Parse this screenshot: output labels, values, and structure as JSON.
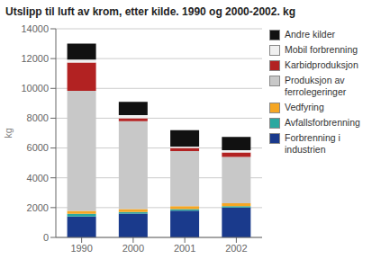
{
  "chart_data": {
    "type": "bar",
    "stacked": true,
    "title": "Utslipp til luft av krom, etter kilde. 1990 og 2000-2002. kg",
    "y_label": "kg",
    "categories": [
      "1990",
      "2000",
      "2001",
      "2002"
    ],
    "series": [
      {
        "name": "Forbrenning i\nindustrien",
        "color": "#1a3a8c",
        "values": [
          1400,
          1600,
          1800,
          2000
        ]
      },
      {
        "name": "Avfallsforbrenning",
        "color": "#2aa8a0",
        "values": [
          180,
          100,
          100,
          100
        ]
      },
      {
        "name": "Vedfyring",
        "color": "#f5a623",
        "values": [
          200,
          200,
          200,
          200
        ]
      },
      {
        "name": "Produksjon av\nferrolegeringer",
        "color": "#c8c8c8",
        "values": [
          8050,
          5900,
          3700,
          3100
        ]
      },
      {
        "name": "Karbidproduksjon",
        "color": "#b22222",
        "values": [
          1900,
          200,
          200,
          300
        ]
      },
      {
        "name": "Mobil forbrenning",
        "color": "#f0f0f0",
        "values": [
          200,
          200,
          100,
          150
        ]
      },
      {
        "name": "Andre kilder",
        "color": "#111111",
        "values": [
          1070,
          900,
          1100,
          900
        ]
      }
    ],
    "ylim": [
      0,
      14000
    ],
    "yticks": [
      0,
      2000,
      4000,
      6000,
      8000,
      10000,
      12000,
      14000
    ],
    "grid": true,
    "legend": "right"
  }
}
